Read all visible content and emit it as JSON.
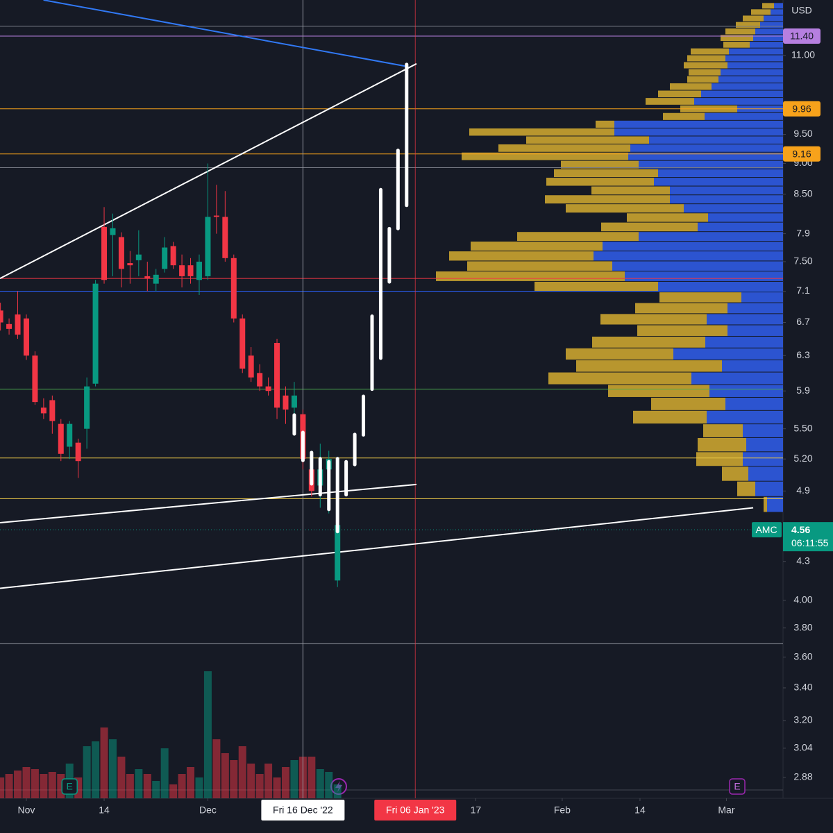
{
  "chart_data": {
    "type": "candlestick",
    "symbol": "AMC",
    "currency": "USD",
    "countdown": "06:11:55",
    "last_price": 4.56,
    "up_color": "#089981",
    "down_color": "#f23645",
    "log_scale": true,
    "ylim": [
      2.77,
      12.19
    ],
    "yticks": [
      {
        "value": 11,
        "label": "11.00"
      },
      {
        "value": 9.5,
        "label": "9.50"
      },
      {
        "value": 9,
        "label": "9.00"
      },
      {
        "value": 8.5,
        "label": "8.50"
      },
      7.9,
      {
        "value": 7.5,
        "label": "7.50"
      },
      7.1,
      6.7,
      6.3,
      5.9,
      {
        "value": 5.5,
        "label": "5.50"
      },
      {
        "value": 5.2,
        "label": "5.20"
      },
      4.9,
      4.3,
      {
        "value": 4,
        "label": "4.00"
      },
      {
        "value": 3.8,
        "label": "3.80"
      },
      {
        "value": 3.6,
        "label": "3.60"
      },
      {
        "value": 3.4,
        "label": "3.40"
      },
      {
        "value": 3.2,
        "label": "3.20"
      },
      3.04,
      2.88
    ],
    "xlim": [
      -3.05,
      87.55
    ],
    "xticks": [
      {
        "value": 0,
        "label": "Nov"
      },
      {
        "value": 9,
        "label": "14"
      },
      {
        "value": 21,
        "label": "Dec"
      },
      {
        "value": 52,
        "label": "17"
      },
      {
        "value": 62,
        "label": "Feb"
      },
      {
        "value": 71,
        "label": "14"
      },
      {
        "value": 81,
        "label": "Mar"
      }
    ],
    "crosshair": {
      "value": 32,
      "label": "Fri 16 Dec '22"
    },
    "marker": {
      "value": 45,
      "label": "Fri 06 Jan '23",
      "color": "#f23645"
    },
    "candles": {
      "x": [
        -3,
        -2,
        -1,
        0,
        1,
        2,
        3,
        4,
        5,
        6,
        7,
        8,
        9,
        10,
        11,
        12,
        13,
        14,
        15,
        16,
        17,
        18,
        19,
        20,
        21,
        22,
        23,
        24,
        25,
        26,
        27,
        28,
        29,
        30,
        31,
        32,
        33,
        34,
        35,
        36
      ],
      "open": [
        6.85,
        6.68,
        6.8,
        6.75,
        6.3,
        5.72,
        5.8,
        5.55,
        5.32,
        5.36,
        5.5,
        5.98,
        8.0,
        7.88,
        7.85,
        7.48,
        7.52,
        7.3,
        7.2,
        7.4,
        7.72,
        7.45,
        7.45,
        7.25,
        7.3,
        8.17,
        8.15,
        7.55,
        6.75,
        6.3,
        6.1,
        5.95,
        6.45,
        5.85,
        5.72,
        5.65,
        5.1,
        4.95,
        5.1,
        4.15
      ],
      "high": [
        6.95,
        6.75,
        7.1,
        6.8,
        6.35,
        5.82,
        5.85,
        5.6,
        5.58,
        5.4,
        6.05,
        7.25,
        8.3,
        8.2,
        7.92,
        7.65,
        7.95,
        7.5,
        7.4,
        7.85,
        7.78,
        7.6,
        7.55,
        7.6,
        9.0,
        8.65,
        8.55,
        7.6,
        6.8,
        6.4,
        6.2,
        6.05,
        6.5,
        5.95,
        6.0,
        5.7,
        5.25,
        5.35,
        5.28,
        4.65
      ],
      "low": [
        6.6,
        6.55,
        6.5,
        6.25,
        5.75,
        5.6,
        5.45,
        5.18,
        5.2,
        5.02,
        5.3,
        5.95,
        7.2,
        7.3,
        7.15,
        7.2,
        7.3,
        7.1,
        7.1,
        7.35,
        7.4,
        7.15,
        7.2,
        7.05,
        7.25,
        7.9,
        7.5,
        6.7,
        6.1,
        6.0,
        5.9,
        5.85,
        5.6,
        5.55,
        5.55,
        5.1,
        4.85,
        4.75,
        4.7,
        4.1
      ],
      "close": [
        6.7,
        6.62,
        6.55,
        6.3,
        5.78,
        5.66,
        5.58,
        5.25,
        5.55,
        5.18,
        5.95,
        7.2,
        7.25,
        7.98,
        7.4,
        7.45,
        7.6,
        7.27,
        7.32,
        7.7,
        7.45,
        7.3,
        7.3,
        7.5,
        8.15,
        8.15,
        7.55,
        6.75,
        6.15,
        6.05,
        5.95,
        5.9,
        5.72,
        5.7,
        5.85,
        5.2,
        4.9,
        5.1,
        5.2,
        4.6
      ]
    },
    "volume": [
      30,
      35,
      40,
      45,
      42,
      35,
      38,
      35,
      50,
      30,
      75,
      82,
      102,
      85,
      60,
      35,
      42,
      35,
      25,
      72,
      20,
      35,
      45,
      30,
      183,
      85,
      65,
      55,
      75,
      50,
      35,
      50,
      30,
      45,
      55,
      60,
      60,
      42,
      38,
      20
    ],
    "volume_lim": [
      0,
      200
    ],
    "projection": {
      "color": "#ffffff",
      "x": [
        31,
        32,
        33,
        34,
        35,
        36,
        37,
        38,
        39,
        40,
        41,
        42,
        43,
        44
      ],
      "low": [
        5.43,
        5.17,
        4.95,
        4.85,
        4.72,
        4.53,
        4.85,
        5.13,
        5.42,
        5.9,
        6.25,
        7.2,
        7.95,
        8.3
      ],
      "high": [
        5.66,
        5.48,
        5.28,
        5.22,
        5.19,
        5.22,
        5.19,
        5.46,
        5.86,
        6.8,
        8.6,
        8.0,
        9.25,
        10.85
      ]
    },
    "levels": [
      {
        "price": 11.61,
        "color": "#787b86"
      },
      {
        "price": {
          "value": 11.4,
          "label": "11.40"
        },
        "color": "#b67fe0",
        "tag": true
      },
      {
        "price": 9.96,
        "color": "#f7a21b",
        "tag": true
      },
      {
        "price": 9.16,
        "color": "#f7a21b",
        "tag": true
      },
      {
        "price": 8.93,
        "color": "#787b86"
      },
      {
        "price": 7.27,
        "color": "#f23645"
      },
      {
        "price": 7.1,
        "color": "#2962ff"
      },
      {
        "price": 5.92,
        "color": "#4caf50"
      },
      {
        "price": 5.21,
        "color": "#e8c547"
      },
      {
        "price": 4.83,
        "color": "#e8c547"
      },
      {
        "price": 3.69,
        "color": "#9598a1"
      }
    ],
    "trendlines": [
      {
        "x": [
          -3.05,
          45.14
        ],
        "y": [
          7.27,
          10.83
        ],
        "color": "#ffffff"
      },
      {
        "x": [
          -3.05,
          45.14
        ],
        "y": [
          4.62,
          4.96
        ],
        "color": "#ffffff"
      },
      {
        "x": [
          -3.05,
          84.1
        ],
        "y": [
          4.09,
          4.75
        ],
        "color": "#ffffff"
      },
      {
        "x": [
          1.98,
          44.2
        ],
        "y": [
          12.19,
          10.77
        ],
        "color": "#3179f5"
      }
    ],
    "volume_profile": {
      "low": 4.71,
      "high": 12.13,
      "max": 500,
      "up_color": "#2c54d0",
      "down_color": "#b8962e",
      "up": [
        13,
        18,
        28,
        33,
        40,
        43,
        48,
        78,
        83,
        80,
        90,
        93,
        103,
        118,
        128,
        66,
        113,
        243,
        243,
        193,
        220,
        223,
        208,
        180,
        186,
        163,
        163,
        143,
        108,
        123,
        208,
        260,
        273,
        246,
        228,
        180,
        60,
        80,
        110,
        80,
        112,
        158,
        88,
        132,
        106,
        83,
        110,
        58,
        53,
        58,
        50,
        40,
        23
      ],
      "down": [
        17,
        28,
        30,
        35,
        43,
        47,
        38,
        55,
        55,
        63,
        46,
        45,
        60,
        62,
        70,
        82,
        60,
        27,
        209,
        177,
        190,
        240,
        112,
        150,
        155,
        113,
        180,
        170,
        117,
        139,
        175,
        190,
        208,
        209,
        272,
        178,
        118,
        133,
        153,
        130,
        163,
        155,
        210,
        206,
        146,
        107,
        106,
        57,
        70,
        67,
        38,
        26,
        5
      ]
    },
    "earnings_markers": [
      {
        "x": 5,
        "label": "E"
      },
      {
        "x": 82.25,
        "label": "E"
      }
    ]
  }
}
